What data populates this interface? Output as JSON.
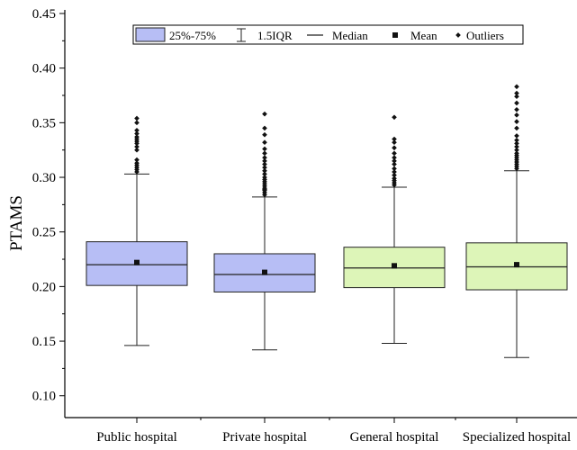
{
  "chart_data": {
    "type": "boxplot",
    "ylabel": "PTAMS",
    "ylim": [
      0.08,
      0.45
    ],
    "yticks": [
      "0.10",
      "0.15",
      "0.20",
      "0.25",
      "0.30",
      "0.35",
      "0.40",
      "0.45"
    ],
    "ytick_values": [
      0.1,
      0.15,
      0.2,
      0.25,
      0.3,
      0.35,
      0.4,
      0.45
    ],
    "legend": {
      "placement": "top-center",
      "items": [
        {
          "key": "box",
          "label": "25%-75%"
        },
        {
          "key": "whisker",
          "label": "1.5IQR"
        },
        {
          "key": "median",
          "label": "Median"
        },
        {
          "key": "mean",
          "label": "Mean"
        },
        {
          "key": "outliers",
          "label": "Outliers"
        }
      ]
    },
    "categories": [
      "Public hospital",
      "Private hospital",
      "General hospital",
      "Specialized hospital"
    ],
    "colors": [
      "#b7bef5",
      "#b7bef5",
      "#ddf5b8",
      "#ddf5b8"
    ],
    "series": [
      {
        "category": "Public hospital",
        "whisker_low": 0.146,
        "q1": 0.201,
        "median": 0.22,
        "q3": 0.241,
        "whisker_high": 0.303,
        "mean": 0.222,
        "outliers": [
          0.305,
          0.307,
          0.309,
          0.311,
          0.313,
          0.316,
          0.325,
          0.328,
          0.331,
          0.333,
          0.335,
          0.337,
          0.34,
          0.343,
          0.35,
          0.354
        ]
      },
      {
        "category": "Private hospital",
        "whisker_low": 0.142,
        "q1": 0.195,
        "median": 0.211,
        "q3": 0.23,
        "whisker_high": 0.282,
        "mean": 0.213,
        "outliers": [
          0.284,
          0.286,
          0.288,
          0.289,
          0.29,
          0.292,
          0.294,
          0.296,
          0.298,
          0.3,
          0.303,
          0.306,
          0.309,
          0.312,
          0.315,
          0.318,
          0.322,
          0.326,
          0.332,
          0.339,
          0.345,
          0.358
        ]
      },
      {
        "category": "General hospital",
        "whisker_low": 0.148,
        "q1": 0.199,
        "median": 0.217,
        "q3": 0.236,
        "whisker_high": 0.291,
        "mean": 0.219,
        "outliers": [
          0.293,
          0.295,
          0.297,
          0.299,
          0.302,
          0.305,
          0.308,
          0.312,
          0.315,
          0.318,
          0.322,
          0.327,
          0.332,
          0.335,
          0.355
        ]
      },
      {
        "category": "Specialized hospital",
        "whisker_low": 0.135,
        "q1": 0.197,
        "median": 0.218,
        "q3": 0.24,
        "whisker_high": 0.306,
        "mean": 0.22,
        "outliers": [
          0.308,
          0.31,
          0.312,
          0.314,
          0.316,
          0.318,
          0.32,
          0.322,
          0.325,
          0.328,
          0.331,
          0.334,
          0.338,
          0.345,
          0.351,
          0.357,
          0.362,
          0.368,
          0.374,
          0.377,
          0.383
        ]
      }
    ]
  }
}
